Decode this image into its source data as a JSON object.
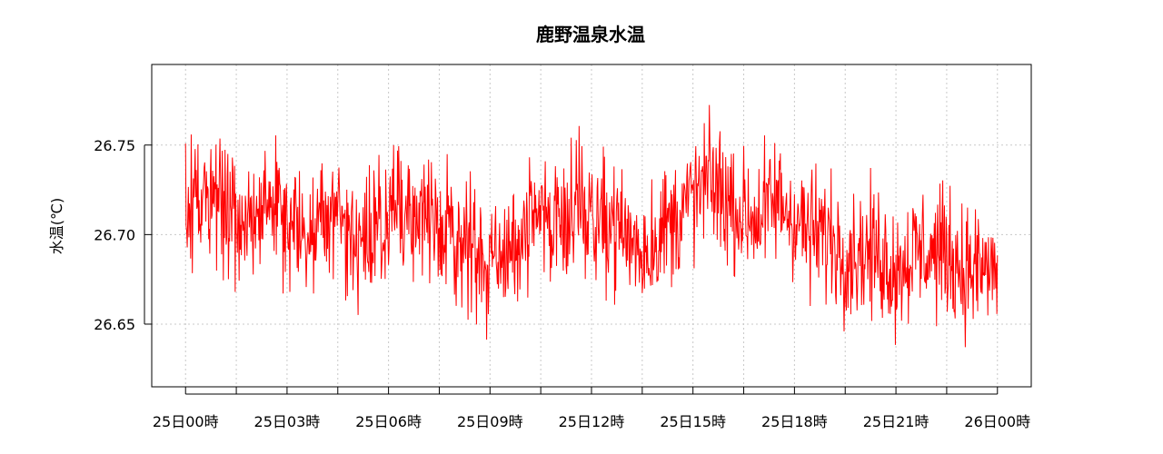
{
  "chart_data": {
    "type": "line",
    "title": "鹿野温泉水温",
    "xlabel": "",
    "ylabel": "水温(℃)",
    "ylim": [
      26.615,
      26.795
    ],
    "grid": true,
    "legend": "none",
    "x_ticks": [
      "25日00時",
      "25日03時",
      "25日06時",
      "25日09時",
      "25日12時",
      "25日15時",
      "25日18時",
      "25日21時",
      "26日00時"
    ],
    "y_ticks": [
      "26.65",
      "26.70",
      "26.75"
    ],
    "y_tick_values": [
      26.65,
      26.7,
      26.75
    ],
    "xlim_hours": [
      -1,
      25
    ],
    "series": [
      {
        "color": "#ff0000",
        "hours": [
          0,
          0.5,
          1,
          1.5,
          2,
          2.5,
          3,
          3.5,
          4,
          4.5,
          5,
          5.5,
          6,
          6.5,
          7,
          7.5,
          8,
          8.5,
          9,
          9.5,
          10,
          10.5,
          11,
          11.5,
          12,
          12.5,
          13,
          13.5,
          14,
          14.5,
          15,
          15.5,
          16,
          16.5,
          17,
          17.5,
          18,
          18.5,
          19,
          19.5,
          20,
          20.5,
          21,
          21.5,
          22,
          22.5,
          23,
          23.5,
          24
        ],
        "values": [
          26.71,
          26.72,
          26.72,
          26.7,
          26.71,
          26.72,
          26.71,
          26.7,
          26.71,
          26.71,
          26.7,
          26.7,
          26.71,
          26.72,
          26.71,
          26.7,
          26.7,
          26.69,
          26.68,
          26.69,
          26.7,
          26.71,
          26.71,
          26.72,
          26.71,
          26.71,
          26.7,
          26.69,
          26.7,
          26.71,
          26.72,
          26.73,
          26.72,
          26.71,
          26.71,
          26.72,
          26.71,
          26.7,
          26.7,
          26.69,
          26.69,
          26.69,
          26.68,
          26.69,
          26.69,
          26.69,
          26.68,
          26.68,
          26.68
        ],
        "spread": [
          0.035,
          0.035,
          0.035,
          0.035,
          0.035,
          0.035,
          0.035,
          0.035,
          0.035,
          0.035,
          0.035,
          0.035,
          0.035,
          0.035,
          0.035,
          0.035,
          0.035,
          0.035,
          0.035,
          0.035,
          0.035,
          0.035,
          0.035,
          0.035,
          0.035,
          0.035,
          0.035,
          0.035,
          0.035,
          0.035,
          0.035,
          0.035,
          0.035,
          0.035,
          0.035,
          0.035,
          0.035,
          0.035,
          0.035,
          0.035,
          0.035,
          0.035,
          0.035,
          0.035,
          0.035,
          0.035,
          0.035,
          0.035,
          0.035
        ]
      }
    ]
  }
}
